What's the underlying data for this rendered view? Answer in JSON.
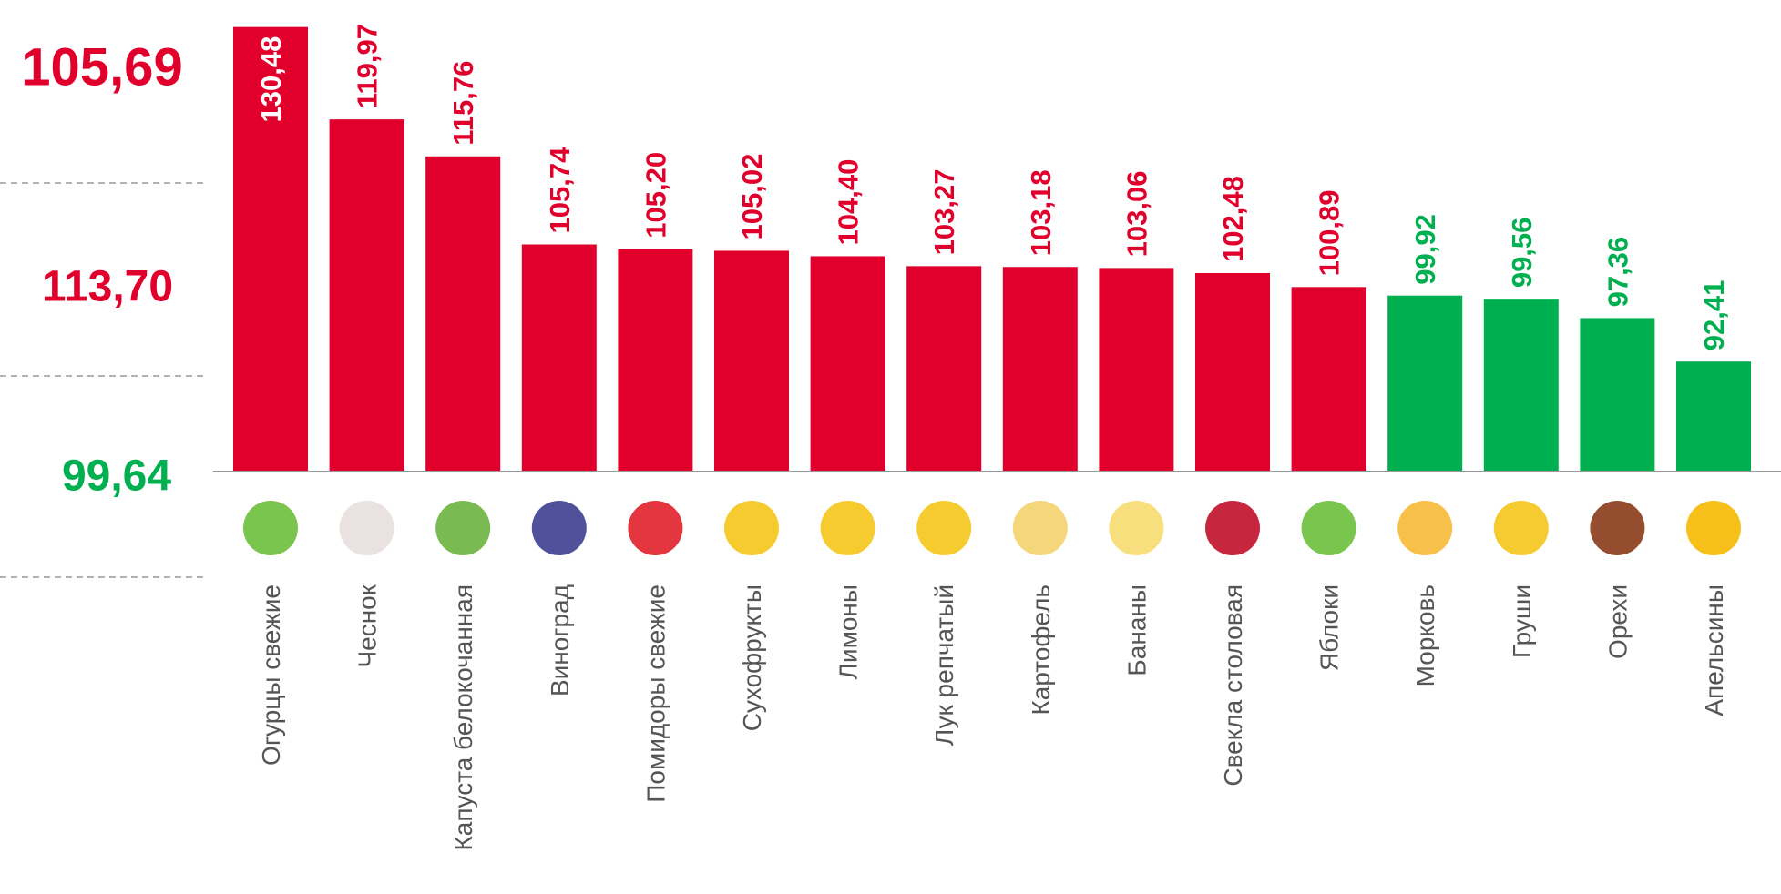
{
  "chart_data": {
    "type": "bar",
    "categories": [
      "Огурцы свежие",
      "Чеснок",
      "Капуста белокочанная",
      "Виноград",
      "Помидоры свежие",
      "Сухофрукты",
      "Лимоны",
      "Лук репчатый",
      "Картофель",
      "Бананы",
      "Свекла столовая",
      "Яблоки",
      "Морковь",
      "Груши",
      "Орехи",
      "Апельсины"
    ],
    "values": [
      130.48,
      119.97,
      115.76,
      105.74,
      105.2,
      105.02,
      104.4,
      103.27,
      103.18,
      103.06,
      102.48,
      100.89,
      99.92,
      99.56,
      97.36,
      92.41
    ],
    "value_labels": [
      "130,48",
      "119,97",
      "115,76",
      "105,74",
      "105,20",
      "105,02",
      "104,40",
      "103,27",
      "103,18",
      "103,06",
      "102,48",
      "100,89",
      "99,92",
      "99,56",
      "97,36",
      "92,41"
    ],
    "colors": [
      "#e0002b",
      "#e0002b",
      "#e0002b",
      "#e0002b",
      "#e0002b",
      "#e0002b",
      "#e0002b",
      "#e0002b",
      "#e0002b",
      "#e0002b",
      "#e0002b",
      "#e0002b",
      "#00b050",
      "#00b050",
      "#00b050",
      "#00b050"
    ],
    "ylim": [
      80,
      132
    ],
    "annotations": [
      {
        "text": "105,69",
        "color": "#e0002b"
      },
      {
        "text": "113,70",
        "color": "#e0002b"
      },
      {
        "text": "99,64",
        "color": "#00b050"
      }
    ]
  }
}
